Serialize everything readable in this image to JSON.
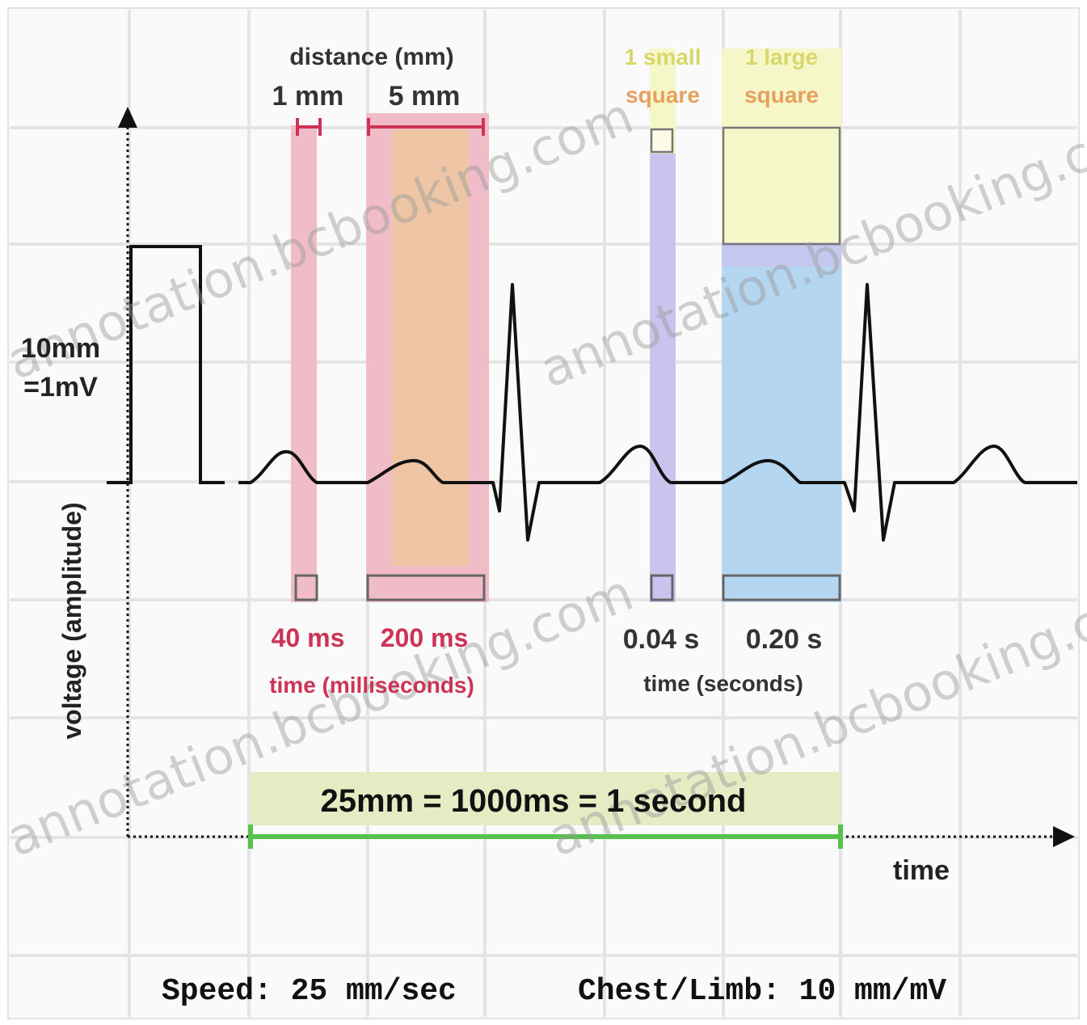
{
  "axes": {
    "y_label": "voltage (amplitude)",
    "x_label": "time"
  },
  "calibration": {
    "line1": "10mm",
    "line2": "=1mV"
  },
  "distance": {
    "heading": "distance (mm)",
    "small": "1 mm",
    "large": "5 mm"
  },
  "squares": {
    "small_line1": "1 small",
    "small_line2": "square",
    "large_line1": "1 large",
    "large_line2": "square"
  },
  "time_ms": {
    "small": "40 ms",
    "large": "200 ms",
    "caption": "time (milliseconds)"
  },
  "time_s": {
    "small": "0.04 s",
    "large": "0.20 s",
    "caption": "time (seconds)"
  },
  "scale_banner": "25mm = 1000ms = 1 second",
  "footer": {
    "speed": "Speed: 25 mm/sec",
    "gain": "Chest/Limb: 10 mm/mV"
  },
  "watermark": "annotation.bcbooking.com",
  "colors": {
    "pink": "#f0bcc8",
    "peach": "#eec6a6",
    "lavender": "#c9c4ee",
    "blue": "#b5d6f0",
    "yellow": "#f5f7c8",
    "green_bar": "#e4ecc4",
    "green_line": "#55c24c",
    "magenta_text": "#cc3355",
    "grid": "#e4e4e4"
  }
}
